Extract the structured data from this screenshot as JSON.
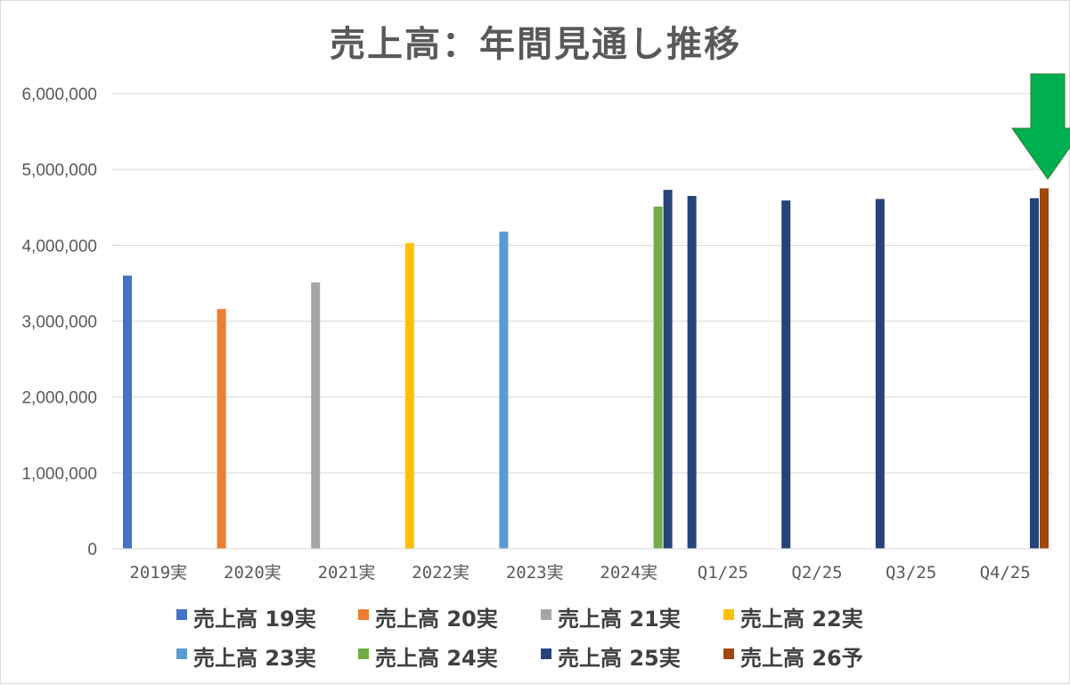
{
  "chart_data": {
    "type": "bar",
    "title": "売上高：年間見通し推移",
    "xlabel": "",
    "ylabel": "",
    "ylim": [
      0,
      6000000
    ],
    "yticks": [
      "0",
      "1,000,000",
      "2,000,000",
      "3,000,000",
      "4,000,000",
      "5,000,000",
      "6,000,000"
    ],
    "grid": true,
    "legend_position": "bottom",
    "categories": [
      "2019実",
      "2020実",
      "2021実",
      "2022実",
      "2023実",
      "2024実",
      "Q1/25",
      "Q2/25",
      "Q3/25",
      "Q4/25"
    ],
    "series": [
      {
        "name": "売上高 19実",
        "color": "#4472c4",
        "values": [
          3600000,
          null,
          null,
          null,
          null,
          null,
          null,
          null,
          null,
          null
        ]
      },
      {
        "name": "売上高 20実",
        "color": "#ed7d31",
        "values": [
          null,
          3160000,
          null,
          null,
          null,
          null,
          null,
          null,
          null,
          null
        ]
      },
      {
        "name": "売上高 21実",
        "color": "#a5a5a5",
        "values": [
          null,
          null,
          3510000,
          null,
          null,
          null,
          null,
          null,
          null,
          null
        ]
      },
      {
        "name": "売上高 22実",
        "color": "#ffc000",
        "values": [
          null,
          null,
          null,
          4030000,
          null,
          null,
          null,
          null,
          null,
          null
        ]
      },
      {
        "name": "売上高 23実",
        "color": "#5b9bd5",
        "values": [
          null,
          null,
          null,
          null,
          4180000,
          null,
          null,
          null,
          null,
          null
        ]
      },
      {
        "name": "売上高 24実",
        "color": "#70ad47",
        "values": [
          null,
          null,
          null,
          null,
          null,
          4510000,
          null,
          null,
          null,
          null
        ]
      },
      {
        "name": "売上高 25実",
        "color": "#264478",
        "values": [
          null,
          null,
          null,
          null,
          null,
          4730000,
          4650000,
          4590000,
          4610000,
          4620000
        ]
      },
      {
        "name": "売上高 26予",
        "color": "#9e480e",
        "values": [
          null,
          null,
          null,
          null,
          null,
          null,
          null,
          null,
          null,
          4750000
        ]
      }
    ],
    "annotations": [
      {
        "type": "arrow",
        "direction": "down",
        "color": "#00b050",
        "points_to": "Q4/25"
      }
    ]
  }
}
